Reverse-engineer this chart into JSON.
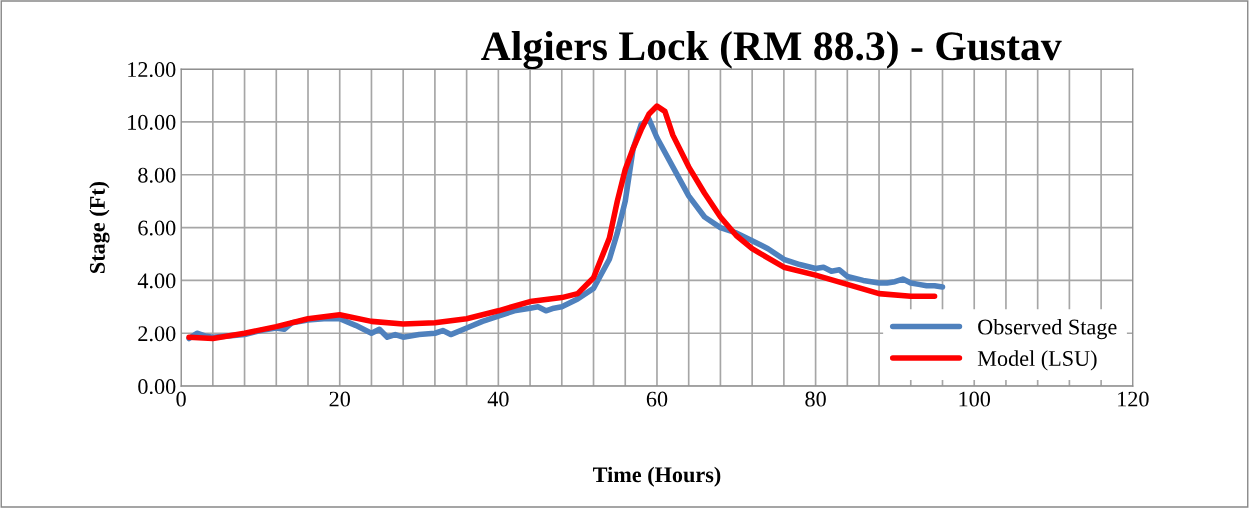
{
  "chart_data": {
    "type": "line",
    "title": "Algiers Lock (RM 88.3) - Gustav",
    "xlabel": "Time (Hours)",
    "ylabel": "Stage (Ft)",
    "xlim": [
      0,
      120
    ],
    "ylim": [
      0,
      12
    ],
    "xticks": [
      0,
      {
        "value": 4,
        "label": null
      },
      {
        "value": 8,
        "label": null
      },
      {
        "value": 12,
        "label": null
      },
      {
        "value": 16,
        "label": null
      },
      20,
      {
        "value": 24,
        "label": null
      },
      {
        "value": 28,
        "label": null
      },
      {
        "value": 32,
        "label": null
      },
      {
        "value": 36,
        "label": null
      },
      40,
      {
        "value": 44,
        "label": null
      },
      {
        "value": 48,
        "label": null
      },
      {
        "value": 52,
        "label": null
      },
      {
        "value": 56,
        "label": null
      },
      60,
      {
        "value": 64,
        "label": null
      },
      {
        "value": 68,
        "label": null
      },
      {
        "value": 72,
        "label": null
      },
      {
        "value": 76,
        "label": null
      },
      80,
      {
        "value": 84,
        "label": null
      },
      {
        "value": 88,
        "label": null
      },
      {
        "value": 92,
        "label": null
      },
      {
        "value": 96,
        "label": null
      },
      100,
      {
        "value": 104,
        "label": null
      },
      {
        "value": 108,
        "label": null
      },
      {
        "value": 112,
        "label": null
      },
      {
        "value": 116,
        "label": null
      },
      120
    ],
    "yticks": [
      {
        "value": 0,
        "label": "0.00"
      },
      {
        "value": 2,
        "label": "2.00"
      },
      {
        "value": 4,
        "label": "4.00"
      },
      {
        "value": 6,
        "label": "6.00"
      },
      {
        "value": 8,
        "label": "8.00"
      },
      {
        "value": 10,
        "label": "10.00"
      },
      {
        "value": 12,
        "label": "12.00"
      }
    ],
    "grid": true,
    "legend": "bottom right",
    "marker": "none",
    "line_style": "solid",
    "series": [
      {
        "name": "Observed Stage",
        "color": "#4f81bd",
        "x": [
          1,
          2,
          3,
          4,
          6,
          8,
          10,
          12,
          13,
          14,
          16,
          18,
          20,
          22,
          24,
          25,
          26,
          27,
          28,
          30,
          32,
          33,
          34,
          36,
          38,
          40,
          42,
          44,
          45,
          46,
          47,
          48,
          50,
          52,
          54,
          55,
          56,
          57,
          58,
          59,
          60,
          62,
          64,
          66,
          68,
          70,
          72,
          74,
          76,
          78,
          80,
          81,
          82,
          83,
          84,
          86,
          88,
          89,
          90,
          91,
          92,
          93,
          94,
          95,
          96
        ],
        "values": [
          1.8,
          2.0,
          1.9,
          1.85,
          1.9,
          1.95,
          2.1,
          2.2,
          2.15,
          2.4,
          2.5,
          2.55,
          2.55,
          2.3,
          2.0,
          2.15,
          1.85,
          1.95,
          1.85,
          1.95,
          2.0,
          2.1,
          1.95,
          2.2,
          2.45,
          2.65,
          2.85,
          2.95,
          3.0,
          2.85,
          2.95,
          3.0,
          3.3,
          3.7,
          4.8,
          5.8,
          7.0,
          9.0,
          9.9,
          10.1,
          9.4,
          8.3,
          7.2,
          6.4,
          6.0,
          5.8,
          5.5,
          5.2,
          4.8,
          4.6,
          4.45,
          4.5,
          4.35,
          4.4,
          4.15,
          4.0,
          3.9,
          3.9,
          3.95,
          4.05,
          3.9,
          3.85,
          3.8,
          3.8,
          3.75
        ]
      },
      {
        "name": "Model (LSU)",
        "color": "#ff0000",
        "x": [
          1,
          4,
          8,
          12,
          16,
          20,
          24,
          28,
          32,
          36,
          40,
          44,
          48,
          50,
          52,
          54,
          55,
          56,
          57,
          58,
          59,
          60,
          61,
          62,
          64,
          66,
          68,
          70,
          72,
          76,
          80,
          84,
          88,
          92,
          95
        ],
        "values": [
          1.85,
          1.8,
          2.0,
          2.25,
          2.55,
          2.7,
          2.45,
          2.35,
          2.4,
          2.55,
          2.85,
          3.2,
          3.35,
          3.5,
          4.1,
          5.6,
          7.0,
          8.2,
          9.0,
          9.7,
          10.3,
          10.6,
          10.4,
          9.5,
          8.3,
          7.3,
          6.4,
          5.7,
          5.2,
          4.5,
          4.2,
          3.85,
          3.5,
          3.4,
          3.4
        ]
      }
    ]
  }
}
